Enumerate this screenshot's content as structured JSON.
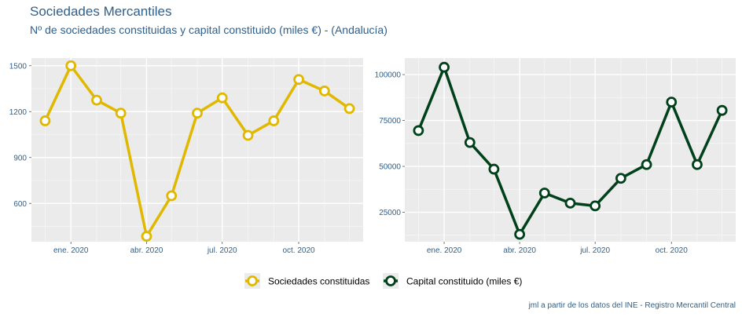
{
  "title": "Sociedades Mercantiles",
  "subtitle": "Nº de sociedades constituidas y capital constituido (miles €) - (Andalucía)",
  "caption": "jml a partir de los datos del INE - Registro Mercantil Central",
  "chart_data": [
    {
      "type": "line",
      "x": [
        "2019-12-01",
        "2020-01-01",
        "2020-02-01",
        "2020-03-01",
        "2020-04-01",
        "2020-05-01",
        "2020-06-01",
        "2020-07-01",
        "2020-08-01",
        "2020-09-01",
        "2020-10-01",
        "2020-11-01",
        "2020-12-01"
      ],
      "series": [
        {
          "name": "Sociedades constituidas",
          "color": "#e0b800",
          "values": [
            1140,
            1500,
            1275,
            1190,
            385,
            650,
            1190,
            1290,
            1045,
            1140,
            1410,
            1335,
            1220
          ]
        }
      ],
      "xticks": [
        "ene. 2020",
        "abr. 2020",
        "jul. 2020",
        "oct. 2020"
      ],
      "yticks": [
        "600",
        "900",
        "1200",
        "1500"
      ],
      "ylim": [
        350,
        1550
      ],
      "background": "#ebebeb",
      "grid": true
    },
    {
      "type": "line",
      "x": [
        "2019-12-01",
        "2020-01-01",
        "2020-02-01",
        "2020-03-01",
        "2020-04-01",
        "2020-05-01",
        "2020-06-01",
        "2020-07-01",
        "2020-08-01",
        "2020-09-01",
        "2020-10-01",
        "2020-11-01",
        "2020-12-01"
      ],
      "series": [
        {
          "name": "Capital constituido (miles €)",
          "color": "#00401a",
          "values": [
            69500,
            104000,
            63000,
            48500,
            13000,
            35500,
            30000,
            28500,
            43500,
            51000,
            85000,
            51000,
            80500
          ]
        }
      ],
      "xticks": [
        "ene. 2020",
        "abr. 2020",
        "jul. 2020",
        "oct. 2020"
      ],
      "yticks": [
        "25000",
        "50000",
        "75000",
        "100000"
      ],
      "ylim": [
        9000,
        109000
      ],
      "background": "#ebebeb",
      "grid": true
    }
  ],
  "legend": [
    {
      "label": "Sociedades constituidas",
      "color": "#e0b800"
    },
    {
      "label": "Capital constituido (miles €)",
      "color": "#00401a"
    }
  ]
}
